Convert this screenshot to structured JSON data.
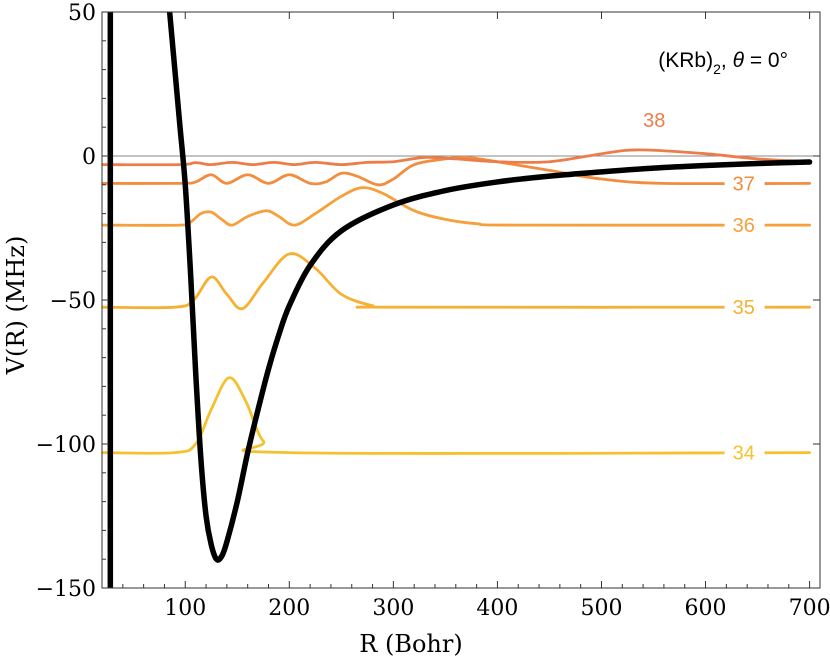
{
  "chart_data": {
    "type": "line",
    "xlabel": "R (Bohr)",
    "ylabel": "V(R) (MHz)",
    "xlim": [
      20,
      710
    ],
    "ylim": [
      -150,
      50
    ],
    "xticks": [
      100,
      200,
      300,
      400,
      500,
      600,
      700
    ],
    "xtick_labels": [
      "100",
      "200",
      "300",
      "400",
      "500",
      "600",
      "700"
    ],
    "yticks": [
      50,
      0,
      -50,
      -100,
      -150
    ],
    "ytick_labels": [
      "50",
      "0",
      "−50",
      "−100",
      "−150"
    ],
    "annotation": {
      "base": "(KRb)",
      "sub": "2",
      "rest": ", ",
      "symbol": "θ",
      "value": " = 0°"
    },
    "wall_R": 28,
    "potential": {
      "name": "V(R)",
      "color": "#000000",
      "points": [
        [
          85,
          50
        ],
        [
          90,
          30
        ],
        [
          95,
          10
        ],
        [
          100,
          -10
        ],
        [
          105,
          -40
        ],
        [
          110,
          -75
        ],
        [
          115,
          -105
        ],
        [
          120,
          -125
        ],
        [
          125,
          -135
        ],
        [
          130,
          -140
        ],
        [
          135,
          -139
        ],
        [
          140,
          -134
        ],
        [
          150,
          -120
        ],
        [
          160,
          -103
        ],
        [
          170,
          -88
        ],
        [
          180,
          -74
        ],
        [
          190,
          -62
        ],
        [
          200,
          -52
        ],
        [
          220,
          -38
        ],
        [
          250,
          -26
        ],
        [
          300,
          -17
        ],
        [
          350,
          -12
        ],
        [
          400,
          -9
        ],
        [
          450,
          -7
        ],
        [
          500,
          -5.5
        ],
        [
          550,
          -4.2
        ],
        [
          600,
          -3.3
        ],
        [
          650,
          -2.6
        ],
        [
          700,
          -2.1
        ]
      ]
    },
    "levels": [
      {
        "label": "34",
        "energy": -103,
        "color": "#f5c12e",
        "points": [
          [
            20,
            -103
          ],
          [
            90,
            -103
          ],
          [
            110,
            -100
          ],
          [
            125,
            -88
          ],
          [
            142,
            -77
          ],
          [
            158,
            -85
          ],
          [
            175,
            -99
          ],
          [
            200,
            -103
          ],
          [
            700,
            -103
          ]
        ]
      },
      {
        "label": "35",
        "energy": -52.5,
        "color": "#f6b032",
        "points": [
          [
            20,
            -52.5
          ],
          [
            90,
            -52.5
          ],
          [
            108,
            -50
          ],
          [
            125,
            -42
          ],
          [
            140,
            -48
          ],
          [
            155,
            -53
          ],
          [
            175,
            -44
          ],
          [
            200,
            -34
          ],
          [
            225,
            -39
          ],
          [
            250,
            -48
          ],
          [
            280,
            -52
          ],
          [
            300,
            -52.5
          ],
          [
            700,
            -52.5
          ]
        ]
      },
      {
        "label": "36",
        "energy": -24,
        "color": "#f5a03a",
        "points": [
          [
            20,
            -24
          ],
          [
            95,
            -24
          ],
          [
            105,
            -23
          ],
          [
            115,
            -20
          ],
          [
            125,
            -19.5
          ],
          [
            135,
            -22
          ],
          [
            145,
            -24
          ],
          [
            160,
            -21
          ],
          [
            178,
            -19
          ],
          [
            190,
            -21
          ],
          [
            205,
            -24
          ],
          [
            225,
            -20
          ],
          [
            250,
            -14
          ],
          [
            270,
            -11
          ],
          [
            290,
            -13
          ],
          [
            320,
            -19
          ],
          [
            350,
            -22
          ],
          [
            380,
            -23.5
          ],
          [
            420,
            -24
          ],
          [
            700,
            -24
          ]
        ]
      },
      {
        "label": "37",
        "energy": -9.5,
        "color": "#f28c3e",
        "points": [
          [
            20,
            -9.5
          ],
          [
            95,
            -9.5
          ],
          [
            110,
            -9
          ],
          [
            125,
            -6.5
          ],
          [
            140,
            -9.5
          ],
          [
            160,
            -6.5
          ],
          [
            180,
            -9.5
          ],
          [
            200,
            -6.5
          ],
          [
            220,
            -9.5
          ],
          [
            235,
            -9
          ],
          [
            250,
            -6
          ],
          [
            265,
            -7
          ],
          [
            285,
            -10
          ],
          [
            300,
            -8
          ],
          [
            320,
            -3
          ],
          [
            350,
            -1
          ],
          [
            370,
            -0.5
          ],
          [
            400,
            -2
          ],
          [
            450,
            -5
          ],
          [
            500,
            -8
          ],
          [
            560,
            -9.5
          ],
          [
            700,
            -9.5
          ]
        ]
      },
      {
        "label": "38",
        "energy": -3,
        "color": "#ed7d48",
        "points": [
          [
            20,
            -3
          ],
          [
            95,
            -3
          ],
          [
            110,
            -2.3
          ],
          [
            125,
            -3
          ],
          [
            145,
            -2.2
          ],
          [
            165,
            -3
          ],
          [
            185,
            -2.2
          ],
          [
            205,
            -3
          ],
          [
            225,
            -2.2
          ],
          [
            250,
            -3
          ],
          [
            275,
            -2.2
          ],
          [
            300,
            -2
          ],
          [
            330,
            -0.5
          ],
          [
            360,
            -1
          ],
          [
            400,
            -2
          ],
          [
            450,
            -2
          ],
          [
            500,
            0.8
          ],
          [
            525,
            2
          ],
          [
            550,
            2
          ],
          [
            600,
            0.8
          ],
          [
            650,
            -1
          ],
          [
            700,
            -2
          ]
        ]
      }
    ],
    "level_labels": [
      {
        "label": "34",
        "R": 626,
        "V": -103
      },
      {
        "label": "35",
        "R": 626,
        "V": -52.5
      },
      {
        "label": "36",
        "R": 626,
        "V": -24
      },
      {
        "label": "37",
        "R": 626,
        "V": -9.5
      },
      {
        "label": "38",
        "R": 540,
        "V": 12.5,
        "free": true
      }
    ],
    "zero_line": 0,
    "grid": false,
    "frame": true
  }
}
